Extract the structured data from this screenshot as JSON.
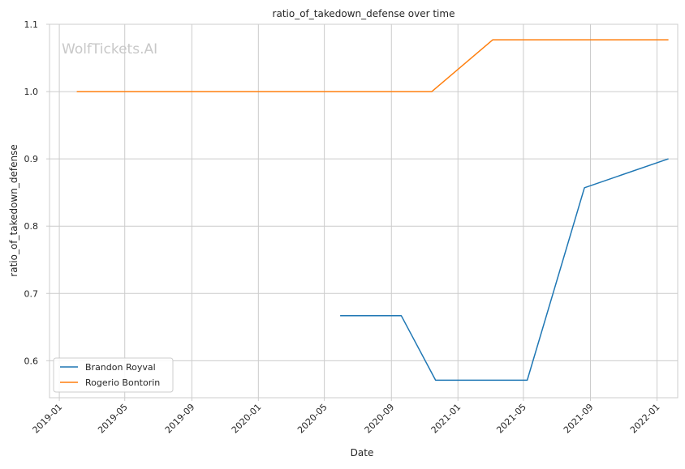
{
  "watermark": "WolfTickets.AI",
  "chart_data": {
    "type": "line",
    "title": "ratio_of_takedown_defense over time",
    "xlabel": "Date",
    "ylabel": "ratio_of_takedown_defense",
    "x_type": "date",
    "xlim": [
      "2018-12-14",
      "2022-02-08"
    ],
    "ylim": [
      0.545,
      1.1
    ],
    "x_ticks": [
      "2019-01-01",
      "2019-05-01",
      "2019-09-01",
      "2020-01-01",
      "2020-05-01",
      "2020-09-01",
      "2021-01-01",
      "2021-05-01",
      "2021-09-01",
      "2022-01-01"
    ],
    "x_tick_labels": [
      "2019-01",
      "2019-05",
      "2019-09",
      "2020-01",
      "2020-05",
      "2020-09",
      "2021-01",
      "2021-05",
      "2021-09",
      "2022-01"
    ],
    "y_ticks": [
      0.6,
      0.7,
      0.8,
      0.9,
      1.0,
      1.1
    ],
    "y_tick_labels": [
      "0.6",
      "0.7",
      "0.8",
      "0.9",
      "1.0",
      "1.1"
    ],
    "grid": true,
    "legend_position": "lower-left",
    "series": [
      {
        "name": "Brandon Royval",
        "color": "#1f77b4",
        "points": [
          {
            "x": "2020-05-30",
            "y": 0.667
          },
          {
            "x": "2020-09-19",
            "y": 0.667
          },
          {
            "x": "2020-11-21",
            "y": 0.571
          },
          {
            "x": "2021-05-08",
            "y": 0.571
          },
          {
            "x": "2021-08-21",
            "y": 0.857
          },
          {
            "x": "2022-01-22",
            "y": 0.9
          }
        ]
      },
      {
        "name": "Rogerio Bontorin",
        "color": "#ff7f0e",
        "points": [
          {
            "x": "2019-02-02",
            "y": 1.0
          },
          {
            "x": "2020-11-14",
            "y": 1.0
          },
          {
            "x": "2021-03-06",
            "y": 1.077
          },
          {
            "x": "2022-01-22",
            "y": 1.077
          }
        ]
      }
    ]
  }
}
